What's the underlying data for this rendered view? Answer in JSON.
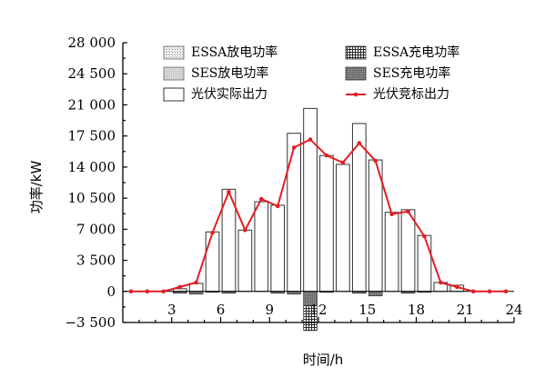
{
  "chart_data": {
    "type": "bar",
    "title": "",
    "xlabel": "时间/h",
    "ylabel": "功率/kW",
    "x": [
      1,
      2,
      3,
      4,
      5,
      6,
      7,
      8,
      9,
      10,
      11,
      12,
      13,
      14,
      15,
      16,
      17,
      18,
      19,
      20,
      21,
      22,
      23,
      24
    ],
    "xticks": [
      3,
      6,
      9,
      12,
      15,
      18,
      21,
      24
    ],
    "xtick_labels": [
      "3",
      "6",
      "9",
      "12",
      "15",
      "18",
      "21",
      "24"
    ],
    "yticks": [
      -3500,
      0,
      3500,
      7000,
      10500,
      14000,
      17500,
      21000,
      24500,
      28000
    ],
    "ytick_labels": [
      "−3 500",
      "0",
      "3 500",
      "7 000",
      "10 500",
      "14 000",
      "17 500",
      "21 000",
      "24 500",
      "28 000"
    ],
    "xlim": [
      0,
      24
    ],
    "ylim": [
      -3500,
      28000
    ],
    "grid": false,
    "legend_position": "top",
    "series": [
      {
        "name": "ESSA放电功率",
        "type": "bar",
        "color": "#d8d8d8",
        "values": [
          0,
          0,
          0,
          0,
          0,
          0,
          0,
          0,
          0,
          0,
          0,
          0,
          0,
          0,
          0,
          0,
          0,
          0,
          0,
          0,
          0,
          0,
          0,
          0
        ]
      },
      {
        "name": "ESSA充电功率",
        "type": "bar",
        "color": "#2a2a2a",
        "values": [
          0,
          0,
          0,
          0,
          0,
          0,
          0,
          0,
          0,
          0,
          0,
          -2800,
          0,
          0,
          0,
          0,
          0,
          0,
          0,
          0,
          0,
          0,
          0,
          0
        ]
      },
      {
        "name": "SES放电功率",
        "type": "bar",
        "color": "#c8c8c8",
        "values": [
          0,
          0,
          0,
          0,
          0,
          0,
          0,
          0,
          0,
          0,
          0,
          0,
          0,
          0,
          0,
          0,
          0,
          0,
          0,
          0,
          0,
          0,
          0,
          0
        ]
      },
      {
        "name": "SES充电功率",
        "type": "bar",
        "color": "#7a7a7a",
        "values": [
          0,
          0,
          0,
          -200,
          -300,
          -100,
          -200,
          0,
          0,
          -200,
          -300,
          -1600,
          -100,
          0,
          -200,
          -500,
          0,
          -200,
          -100,
          0,
          0,
          0,
          0,
          0
        ]
      },
      {
        "name": "光伏实际出力",
        "type": "bar",
        "color": "#ffffff",
        "values": [
          0,
          0,
          0,
          300,
          900,
          6700,
          11500,
          6900,
          10100,
          9700,
          17800,
          20600,
          15300,
          14300,
          18900,
          14800,
          8900,
          9200,
          6300,
          1000,
          700,
          0,
          0,
          0
        ]
      },
      {
        "name": "光伏竞标出力",
        "type": "line",
        "color": "#e31e24",
        "values": [
          0,
          0,
          0,
          500,
          1000,
          6600,
          11200,
          6900,
          10400,
          9600,
          16200,
          17100,
          15300,
          14500,
          16700,
          14700,
          8700,
          9000,
          6200,
          1000,
          500,
          0,
          0,
          0
        ]
      }
    ]
  }
}
